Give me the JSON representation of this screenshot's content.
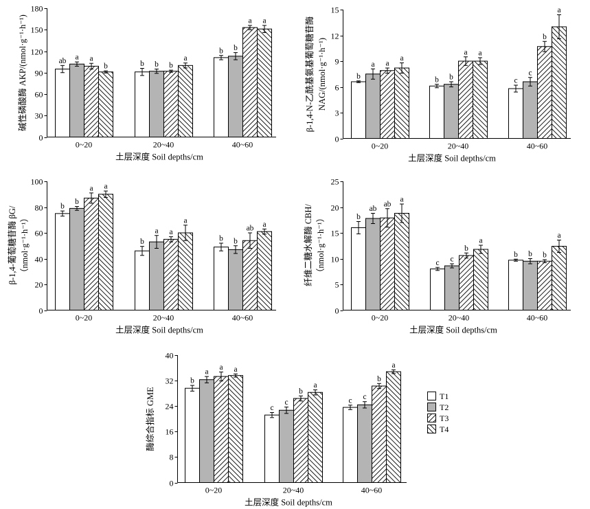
{
  "legend": {
    "placement": "right",
    "items": [
      {
        "label": "T1",
        "fill": "#ffffff",
        "hatch_angle": null
      },
      {
        "label": "T2",
        "fill": "#b4b4b4",
        "hatch_angle": null
      },
      {
        "label": "T3",
        "fill": "#ffffff",
        "hatch_angle": 45
      },
      {
        "label": "T4",
        "fill": "#ffffff",
        "hatch_angle": -45
      }
    ]
  },
  "chart_data": [
    {
      "type": "bar",
      "ylabel": [
        "碱性磷酸酶 AKP/(nmol·g⁻¹·h⁻¹)"
      ],
      "xlabel": "土层深度 Soil depths/cm",
      "categories": [
        "0~20",
        "20~40",
        "40~60"
      ],
      "ylim": [
        0,
        180
      ],
      "yticks": [
        0,
        30,
        60,
        90,
        120,
        150,
        180
      ],
      "grid": false,
      "series": [
        {
          "values": [
            95,
            91,
            111
          ],
          "errors": [
            5,
            5,
            3
          ],
          "letters": [
            "ab",
            "b",
            "b"
          ]
        },
        {
          "values": [
            102,
            92,
            113
          ],
          "errors": [
            3,
            3,
            5
          ],
          "letters": [
            "a",
            "b",
            "b"
          ]
        },
        {
          "values": [
            99,
            92,
            153
          ],
          "errors": [
            4,
            1.5,
            3
          ],
          "letters": [
            "a",
            "b",
            "a"
          ]
        },
        {
          "values": [
            91,
            100,
            151
          ],
          "errors": [
            1.5,
            3.5,
            5
          ],
          "letters": [
            "b",
            "a",
            "a"
          ]
        }
      ]
    },
    {
      "type": "bar",
      "ylabel": [
        "β-1,4-N-乙酰基氨基葡萄糖苷酶",
        "NAG/(nmol·g⁻¹·h⁻¹)"
      ],
      "xlabel": "土层深度 Soil depths/cm",
      "categories": [
        "0~20",
        "20~40",
        "40~60"
      ],
      "ylim": [
        0,
        15
      ],
      "yticks": [
        0,
        3,
        6,
        9,
        12,
        15
      ],
      "grid": false,
      "series": [
        {
          "values": [
            6.6,
            6.1,
            5.8
          ],
          "errors": [
            0.1,
            0.2,
            0.4
          ],
          "letters": [
            "b",
            "b",
            "c"
          ]
        },
        {
          "values": [
            7.5,
            6.3,
            6.6
          ],
          "errors": [
            0.6,
            0.3,
            0.5
          ],
          "letters": [
            "a",
            "b",
            "c"
          ]
        },
        {
          "values": [
            7.9,
            9.0,
            10.7
          ],
          "errors": [
            0.3,
            0.5,
            0.6
          ],
          "letters": [
            "a",
            "a",
            "b"
          ]
        },
        {
          "values": [
            8.2,
            9.0,
            13.0
          ],
          "errors": [
            0.6,
            0.4,
            1.4
          ],
          "letters": [
            "a",
            "a",
            "a"
          ]
        }
      ]
    },
    {
      "type": "bar",
      "ylabel": [
        "β-1,4-葡萄糖苷酶 βG/",
        "（nmol·g⁻¹·h⁻¹）"
      ],
      "xlabel": "土层深度 Soil depths/cm",
      "categories": [
        "0~20",
        "20~40",
        "40~60"
      ],
      "ylim": [
        0,
        100
      ],
      "yticks": [
        0,
        20,
        40,
        60,
        80,
        100
      ],
      "grid": false,
      "series": [
        {
          "values": [
            75,
            46,
            49
          ],
          "errors": [
            2,
            3.5,
            3
          ],
          "letters": [
            "b",
            "b",
            "b"
          ]
        },
        {
          "values": [
            79,
            53,
            47
          ],
          "errors": [
            1.5,
            5,
            3
          ],
          "letters": [
            "b",
            "a",
            "b"
          ]
        },
        {
          "values": [
            87,
            55,
            54
          ],
          "errors": [
            4,
            2,
            6
          ],
          "letters": [
            "a",
            "a",
            "ab"
          ]
        },
        {
          "values": [
            90,
            60,
            61
          ],
          "errors": [
            2.5,
            6,
            2
          ],
          "letters": [
            "a",
            "a",
            "a"
          ]
        }
      ]
    },
    {
      "type": "bar",
      "ylabel": [
        "纤维二糖水解酶 CBH/",
        "（nmol·g⁻¹·h⁻¹）"
      ],
      "xlabel": "土层深度 Soil depths/cm",
      "categories": [
        "0~20",
        "20~40",
        "40~60"
      ],
      "ylim": [
        0,
        25
      ],
      "yticks": [
        0,
        5,
        10,
        15,
        20,
        25
      ],
      "grid": false,
      "series": [
        {
          "values": [
            16.0,
            8.0,
            9.7
          ],
          "errors": [
            1.2,
            0.3,
            0.2
          ],
          "letters": [
            "b",
            "c",
            "b"
          ]
        },
        {
          "values": [
            17.8,
            8.6,
            9.5
          ],
          "errors": [
            1.0,
            0.4,
            0.5
          ],
          "letters": [
            "ab",
            "c",
            "b"
          ]
        },
        {
          "values": [
            17.9,
            10.6,
            9.5
          ],
          "errors": [
            1.8,
            0.5,
            0.3
          ],
          "letters": [
            "ab",
            "b",
            "b"
          ]
        },
        {
          "values": [
            18.8,
            11.8,
            12.4
          ],
          "errors": [
            1.8,
            0.8,
            1.2
          ],
          "letters": [
            "a",
            "a",
            "a"
          ]
        }
      ]
    },
    {
      "type": "bar",
      "ylabel": [
        "酶综合指标 GME"
      ],
      "xlabel": "土层深度 Soil depths/cm",
      "categories": [
        "0~20",
        "20~40",
        "40~60"
      ],
      "ylim": [
        0,
        40
      ],
      "yticks": [
        0,
        8,
        16,
        24,
        32,
        40
      ],
      "grid": false,
      "series": [
        {
          "values": [
            29.6,
            21.2,
            23.6
          ],
          "errors": [
            0.9,
            0.8,
            0.7
          ],
          "letters": [
            "b",
            "c",
            "c"
          ]
        },
        {
          "values": [
            32.3,
            22.7,
            24.4
          ],
          "errors": [
            1.0,
            1.0,
            1.0
          ],
          "letters": [
            "a",
            "c",
            "c"
          ]
        },
        {
          "values": [
            33.3,
            26.4,
            30.3
          ],
          "errors": [
            1.4,
            0.8,
            0.8
          ],
          "letters": [
            "a",
            "b",
            "b"
          ]
        },
        {
          "values": [
            33.6,
            28.3,
            34.8
          ],
          "errors": [
            0.5,
            0.8,
            0.6
          ],
          "letters": [
            "a",
            "a",
            "a"
          ]
        }
      ]
    }
  ]
}
